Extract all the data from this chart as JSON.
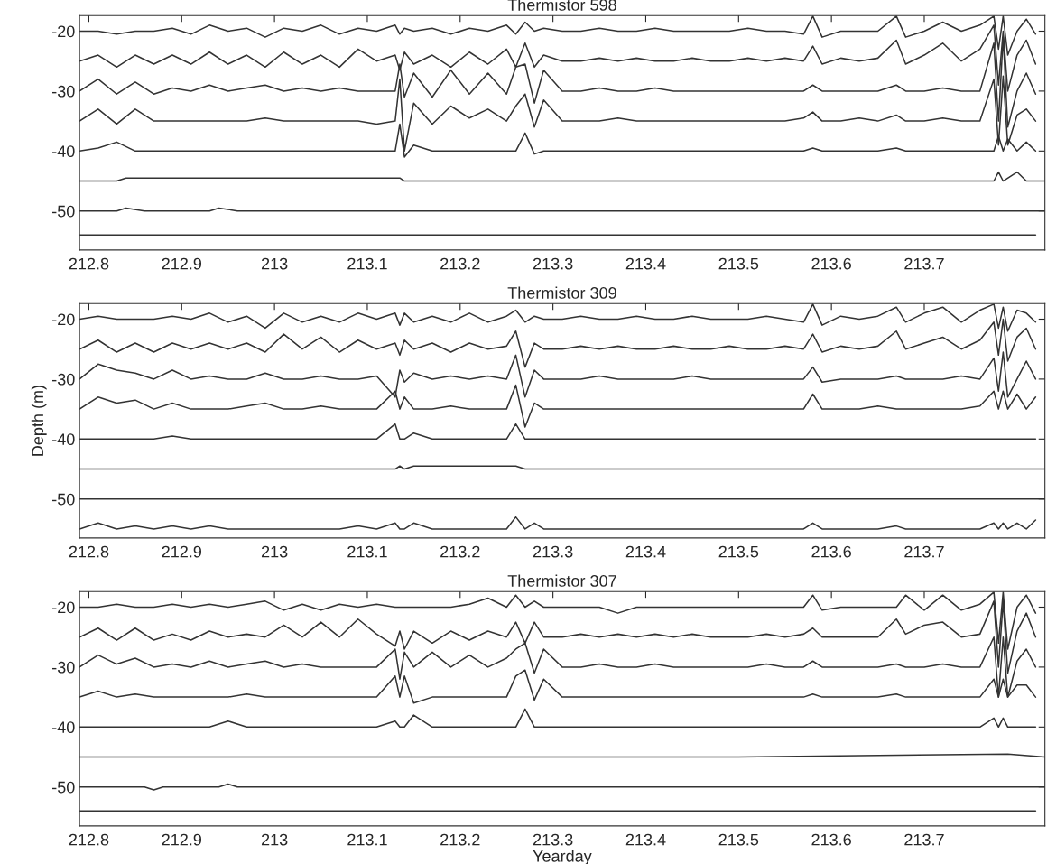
{
  "chart_data": [
    {
      "type": "line",
      "title": "Thermistor 598",
      "xlim": [
        212.79,
        213.83
      ],
      "ylim": [
        -56.5,
        -17.4
      ],
      "xticks": [
        212.8,
        212.9,
        213,
        213.1,
        213.2,
        213.3,
        213.4,
        213.5,
        213.6,
        213.7
      ],
      "yticks": [
        -20,
        -30,
        -40,
        -50
      ],
      "grid": false,
      "x": [
        212.79,
        212.81,
        212.83,
        212.85,
        212.87,
        212.89,
        212.91,
        212.93,
        212.95,
        212.97,
        212.99,
        213.01,
        213.03,
        213.05,
        213.07,
        213.09,
        213.11,
        213.13,
        213.135,
        213.14,
        213.15,
        213.17,
        213.19,
        213.21,
        213.23,
        213.25,
        213.26,
        213.27,
        213.28,
        213.29,
        213.31,
        213.33,
        213.35,
        213.37,
        213.39,
        213.41,
        213.43,
        213.45,
        213.47,
        213.49,
        213.51,
        213.53,
        213.55,
        213.57,
        213.58,
        213.59,
        213.61,
        213.63,
        213.65,
        213.67,
        213.68,
        213.7,
        213.72,
        213.74,
        213.76,
        213.775,
        213.78,
        213.785,
        213.79,
        213.8,
        213.81,
        213.82
      ],
      "series": [
        {
          "color": "#333333",
          "values": [
            -20,
            -20,
            -20.5,
            -20,
            -20,
            -19.5,
            -20.5,
            -19,
            -20,
            -19.5,
            -21,
            -19.5,
            -20,
            -19,
            -20.5,
            -19.5,
            -20,
            -19,
            -20.5,
            -19.5,
            -20,
            -19.5,
            -20.5,
            -19.5,
            -20,
            -19,
            -20.5,
            -18.5,
            -20,
            -19.5,
            -20,
            -20,
            -19.5,
            -20,
            -20,
            -19.5,
            -20,
            -20,
            -20,
            -20,
            -19.5,
            -20,
            -20,
            -20.5,
            -17.5,
            -21,
            -20,
            -20,
            -20,
            -17.5,
            -21,
            -20,
            -18.5,
            -20,
            -19,
            -17.5,
            -23,
            -17.5,
            -24,
            -20,
            -18,
            -20.5
          ]
        },
        {
          "color": "#333333",
          "values": [
            -25,
            -24,
            -26,
            -24,
            -25.5,
            -24,
            -25.5,
            -23.5,
            -25.5,
            -24,
            -26,
            -23.5,
            -25.5,
            -24,
            -26,
            -23,
            -25,
            -24,
            -26.5,
            -23.5,
            -25.5,
            -24,
            -26,
            -23.5,
            -25.5,
            -23,
            -26,
            -22,
            -26,
            -24,
            -25,
            -25,
            -24.5,
            -25,
            -24.5,
            -25,
            -25,
            -24.5,
            -25,
            -25,
            -24.5,
            -25,
            -24.5,
            -25,
            -22.5,
            -25.5,
            -24.5,
            -25,
            -24.5,
            -21.5,
            -25.5,
            -24,
            -22,
            -25,
            -23,
            -19,
            -29,
            -20,
            -30,
            -24,
            -21.5,
            -25.5
          ]
        },
        {
          "color": "#333333",
          "values": [
            -30,
            -28,
            -30.5,
            -28.5,
            -30.5,
            -29.5,
            -30,
            -29,
            -30,
            -29.5,
            -29,
            -30,
            -29.5,
            -30,
            -29.5,
            -30,
            -30,
            -30,
            -25.5,
            -31,
            -27,
            -31,
            -26.5,
            -30.5,
            -27,
            -30.5,
            -26,
            -25.5,
            -32,
            -26.5,
            -30,
            -30,
            -29.5,
            -30,
            -30,
            -29.5,
            -30,
            -30,
            -30,
            -30,
            -30,
            -30,
            -30,
            -30,
            -29,
            -30,
            -30,
            -30,
            -30,
            -29,
            -30,
            -30,
            -29.5,
            -30,
            -30,
            -22,
            -35,
            -21,
            -36,
            -30,
            -27,
            -30.5
          ]
        },
        {
          "color": "#333333",
          "values": [
            -35,
            -33,
            -35.5,
            -33,
            -35,
            -35,
            -35,
            -35,
            -35,
            -35,
            -34.5,
            -35,
            -35,
            -35,
            -35,
            -35,
            -35.5,
            -35,
            -28,
            -40,
            -32,
            -35.5,
            -32.5,
            -34.5,
            -33,
            -35,
            -32.5,
            -30.5,
            -36,
            -31.5,
            -35,
            -35,
            -35,
            -34.5,
            -35,
            -35,
            -35,
            -35,
            -35,
            -35,
            -35,
            -35,
            -35,
            -34.5,
            -33.5,
            -35,
            -35,
            -34.5,
            -35,
            -34,
            -35,
            -35,
            -34.5,
            -35,
            -35,
            -28,
            -39,
            -27.5,
            -39,
            -34,
            -33,
            -35
          ]
        },
        {
          "color": "#333333",
          "values": [
            -40,
            -39.5,
            -38.5,
            -40,
            -40,
            -40,
            -40,
            -40,
            -40,
            -40,
            -40,
            -40,
            -40,
            -40,
            -40,
            -40,
            -40,
            -40,
            -35.5,
            -41,
            -39,
            -40,
            -40,
            -40,
            -40,
            -40,
            -40,
            -37,
            -40.5,
            -40,
            -40,
            -40,
            -40,
            -40,
            -40,
            -40,
            -40,
            -40,
            -40,
            -40,
            -40,
            -40,
            -40,
            -40,
            -39.5,
            -40,
            -40,
            -40,
            -40,
            -39.5,
            -40,
            -40,
            -40,
            -40,
            -40,
            -40,
            -37.5,
            -40,
            -38,
            -40,
            -38.5,
            -40
          ]
        },
        {
          "color": "#333333",
          "x": [
            212.79,
            212.83,
            212.84,
            213.135,
            213.14,
            213.5,
            213.775,
            213.78,
            213.785,
            213.8,
            213.81,
            213.83
          ],
          "values": [
            -45,
            -45,
            -44.5,
            -44.5,
            -45,
            -45,
            -45,
            -43.5,
            -45,
            -43.5,
            -45,
            -45
          ]
        },
        {
          "color": "#333333",
          "x": [
            212.79,
            212.83,
            212.84,
            212.86,
            212.93,
            212.94,
            212.96,
            213.83
          ],
          "values": [
            -50,
            -50,
            -49.5,
            -50,
            -50,
            -49.5,
            -50,
            -50
          ]
        },
        {
          "color": "#333333",
          "x": [
            212.79,
            212.9,
            213.0,
            213.1,
            213.2,
            213.3,
            213.4,
            213.5,
            213.6,
            213.7,
            213.82
          ],
          "values": [
            -54,
            -54,
            -54,
            -54,
            -54,
            -54,
            -54,
            -54,
            -54,
            -54,
            -54
          ]
        }
      ]
    },
    {
      "type": "line",
      "title": "Thermistor 309",
      "ylabel": "Depth (m)",
      "xlim": [
        212.79,
        213.83
      ],
      "ylim": [
        -56.5,
        -17.4
      ],
      "xticks": [
        212.8,
        212.9,
        213,
        213.1,
        213.2,
        213.3,
        213.4,
        213.5,
        213.6,
        213.7
      ],
      "yticks": [
        -20,
        -30,
        -40,
        -50
      ],
      "grid": false,
      "x": [
        212.79,
        212.81,
        212.83,
        212.85,
        212.87,
        212.89,
        212.91,
        212.93,
        212.95,
        212.97,
        212.99,
        213.01,
        213.03,
        213.05,
        213.07,
        213.09,
        213.11,
        213.13,
        213.135,
        213.14,
        213.15,
        213.17,
        213.19,
        213.21,
        213.23,
        213.25,
        213.26,
        213.27,
        213.28,
        213.29,
        213.31,
        213.33,
        213.35,
        213.37,
        213.39,
        213.41,
        213.43,
        213.45,
        213.47,
        213.49,
        213.51,
        213.53,
        213.55,
        213.57,
        213.58,
        213.59,
        213.61,
        213.63,
        213.65,
        213.67,
        213.68,
        213.7,
        213.72,
        213.74,
        213.76,
        213.775,
        213.78,
        213.785,
        213.79,
        213.8,
        213.81,
        213.82
      ],
      "series": [
        {
          "color": "#333333",
          "values": [
            -20,
            -19.5,
            -20,
            -20,
            -20,
            -19.5,
            -20,
            -19,
            -20.5,
            -19.5,
            -21.5,
            -19,
            -20.5,
            -19.5,
            -20.5,
            -19,
            -20,
            -19,
            -21,
            -19,
            -20.5,
            -19.5,
            -20.5,
            -19,
            -20.5,
            -19.5,
            -18.5,
            -20.5,
            -19.5,
            -20,
            -20,
            -19.5,
            -20,
            -20,
            -19.5,
            -20,
            -20,
            -19.5,
            -20,
            -20,
            -20,
            -19.5,
            -20,
            -20.5,
            -17.5,
            -21,
            -19.5,
            -20,
            -19.5,
            -18,
            -20.5,
            -19,
            -18,
            -20.5,
            -18.5,
            -17.5,
            -21.5,
            -18,
            -22,
            -18.5,
            -19,
            -20.5
          ]
        },
        {
          "color": "#333333",
          "values": [
            -25,
            -23.5,
            -25.5,
            -24,
            -25.5,
            -24,
            -25,
            -24,
            -25,
            -24,
            -25.5,
            -22.5,
            -25,
            -23,
            -25.5,
            -23.5,
            -25,
            -24,
            -26,
            -23.5,
            -25,
            -24,
            -25.5,
            -24,
            -25,
            -24.5,
            -22,
            -28,
            -24,
            -25,
            -25,
            -24.5,
            -25,
            -24.5,
            -25,
            -25,
            -24.5,
            -25,
            -25,
            -24.5,
            -25,
            -25,
            -24.5,
            -25,
            -22.5,
            -25.5,
            -24.5,
            -25,
            -24.5,
            -22,
            -25,
            -24,
            -23,
            -25,
            -23.5,
            -20.5,
            -26,
            -20,
            -27,
            -23,
            -21.5,
            -25
          ]
        },
        {
          "color": "#333333",
          "values": [
            -30,
            -27.5,
            -28.5,
            -29,
            -30,
            -28.5,
            -30,
            -29.5,
            -30,
            -30,
            -29,
            -30,
            -30,
            -29.5,
            -30,
            -30,
            -29.5,
            -33,
            -28.5,
            -30.5,
            -29,
            -30,
            -29.5,
            -30,
            -29.5,
            -30,
            -26,
            -33,
            -28.5,
            -30,
            -30,
            -30,
            -29.5,
            -30,
            -30,
            -30,
            -30,
            -29.5,
            -30,
            -30,
            -30,
            -30,
            -30,
            -30,
            -28,
            -30.5,
            -30,
            -30,
            -30,
            -29.5,
            -30,
            -30,
            -30,
            -29.5,
            -30,
            -26.5,
            -32,
            -25.5,
            -33,
            -30,
            -27,
            -30
          ]
        },
        {
          "color": "#333333",
          "values": [
            -35,
            -33,
            -34,
            -33.5,
            -35,
            -34,
            -35,
            -35,
            -35,
            -34.5,
            -34,
            -35,
            -35,
            -34.5,
            -35,
            -35,
            -35,
            -32,
            -35,
            -33,
            -35,
            -35,
            -34.5,
            -35,
            -35,
            -35,
            -31,
            -38,
            -34,
            -35,
            -35,
            -35,
            -35,
            -35,
            -35,
            -35,
            -35,
            -35,
            -35,
            -35,
            -35,
            -35,
            -35,
            -35,
            -32.5,
            -35,
            -35,
            -35,
            -34.5,
            -35,
            -35,
            -35,
            -35,
            -35,
            -34.5,
            -32,
            -35,
            -32,
            -35,
            -32.5,
            -35,
            -33
          ]
        },
        {
          "color": "#333333",
          "values": [
            -40,
            -40,
            -40,
            -40,
            -40,
            -39.5,
            -40,
            -40,
            -40,
            -40,
            -40,
            -40,
            -40,
            -40,
            -40,
            -40,
            -40,
            -37.5,
            -40,
            -40,
            -39,
            -40,
            -40,
            -40,
            -40,
            -40,
            -37.5,
            -40,
            -40,
            -40,
            -40,
            -40,
            -40,
            -40,
            -40,
            -40,
            -40,
            -40,
            -40,
            -40,
            -40,
            -40,
            -40,
            -40,
            -40,
            -40,
            -40,
            -40,
            -40,
            -40,
            -40,
            -40,
            -40,
            -40,
            -40,
            -40,
            -40,
            -40,
            -40,
            -40,
            -40,
            -40
          ]
        },
        {
          "color": "#333333",
          "x": [
            212.79,
            213.13,
            213.135,
            213.14,
            213.15,
            213.26,
            213.27,
            213.83
          ],
          "values": [
            -45,
            -45,
            -44.5,
            -45,
            -44.5,
            -44.5,
            -45,
            -45
          ]
        },
        {
          "color": "#333333",
          "x": [
            212.79,
            213.3,
            213.83
          ],
          "values": [
            -50,
            -50,
            -50
          ]
        },
        {
          "color": "#333333",
          "values": [
            -55,
            -54,
            -55,
            -54.5,
            -55,
            -54.5,
            -55,
            -54.5,
            -55,
            -55,
            -55,
            -55,
            -55,
            -55,
            -55,
            -54.5,
            -55,
            -54,
            -55,
            -55,
            -54,
            -55,
            -55,
            -55,
            -55,
            -55,
            -53,
            -55,
            -54,
            -55,
            -55,
            -55,
            -55,
            -55,
            -55,
            -55,
            -55,
            -55,
            -55,
            -55,
            -55,
            -55,
            -55,
            -55,
            -54,
            -55,
            -55,
            -55,
            -55,
            -54.5,
            -55,
            -55,
            -55,
            -55,
            -55,
            -54,
            -55,
            -54,
            -55,
            -54,
            -55,
            -53.5
          ]
        }
      ]
    },
    {
      "type": "line",
      "title": "Thermistor 307",
      "xlabel": "Yearday",
      "xlim": [
        212.79,
        213.83
      ],
      "ylim": [
        -56.5,
        -17.4
      ],
      "xticks": [
        212.8,
        212.9,
        213,
        213.1,
        213.2,
        213.3,
        213.4,
        213.5,
        213.6,
        213.7
      ],
      "yticks": [
        -20,
        -30,
        -40,
        -50
      ],
      "grid": false,
      "x": [
        212.79,
        212.81,
        212.83,
        212.85,
        212.87,
        212.89,
        212.91,
        212.93,
        212.95,
        212.97,
        212.99,
        213.01,
        213.03,
        213.05,
        213.07,
        213.09,
        213.11,
        213.13,
        213.135,
        213.14,
        213.15,
        213.17,
        213.19,
        213.21,
        213.23,
        213.25,
        213.26,
        213.27,
        213.28,
        213.29,
        213.31,
        213.33,
        213.35,
        213.37,
        213.39,
        213.41,
        213.43,
        213.45,
        213.47,
        213.49,
        213.51,
        213.53,
        213.55,
        213.57,
        213.58,
        213.59,
        213.61,
        213.63,
        213.65,
        213.67,
        213.68,
        213.7,
        213.72,
        213.74,
        213.76,
        213.775,
        213.78,
        213.785,
        213.79,
        213.8,
        213.81,
        213.82
      ],
      "series": [
        {
          "color": "#333333",
          "values": [
            -20,
            -20,
            -19.5,
            -20,
            -20,
            -19.5,
            -20,
            -19.5,
            -20,
            -19.5,
            -19,
            -20.5,
            -19.5,
            -20.5,
            -19.5,
            -20,
            -19.5,
            -20,
            -20,
            -20,
            -20,
            -20,
            -20,
            -19.5,
            -18.5,
            -20,
            -18,
            -20,
            -19,
            -20,
            -20,
            -20,
            -20,
            -21,
            -20,
            -20,
            -20,
            -20,
            -20,
            -20,
            -20,
            -20,
            -20,
            -20,
            -18,
            -20.5,
            -20,
            -20,
            -20,
            -20,
            -18,
            -20.5,
            -18,
            -20.5,
            -19.5,
            -17.5,
            -26,
            -17.5,
            -27,
            -20,
            -18,
            -21
          ]
        },
        {
          "color": "#333333",
          "values": [
            -25,
            -23.5,
            -25.5,
            -23.5,
            -25.5,
            -24.5,
            -25.5,
            -24,
            -25,
            -24.5,
            -25,
            -23,
            -25,
            -22.5,
            -25,
            -22,
            -24.5,
            -26.5,
            -24,
            -27,
            -24,
            -26,
            -24,
            -25.5,
            -24,
            -25,
            -22.5,
            -26,
            -22.5,
            -25,
            -25,
            -24.5,
            -25,
            -24.5,
            -25,
            -24.5,
            -25,
            -24.5,
            -25,
            -25,
            -25,
            -24.5,
            -25,
            -24.5,
            -23.5,
            -25,
            -25,
            -25,
            -25,
            -22,
            -24.5,
            -23,
            -22.5,
            -25,
            -24.5,
            -19,
            -30,
            -19,
            -31,
            -24,
            -21,
            -25
          ]
        },
        {
          "color": "#333333",
          "values": [
            -30,
            -28,
            -29.5,
            -28.5,
            -30,
            -29.5,
            -30,
            -29,
            -30,
            -29.5,
            -29,
            -30,
            -29.5,
            -30,
            -30,
            -30,
            -30,
            -27,
            -32,
            -27.5,
            -30,
            -27.5,
            -30,
            -28,
            -30,
            -28.5,
            -27,
            -26,
            -31,
            -27,
            -30,
            -30,
            -29.5,
            -30,
            -30,
            -29.5,
            -30,
            -30,
            -30,
            -30,
            -30,
            -29.5,
            -30,
            -30,
            -29,
            -30,
            -30,
            -30,
            -30,
            -29.5,
            -30,
            -30,
            -29.5,
            -30,
            -30,
            -25,
            -35,
            -25,
            -35,
            -29,
            -27,
            -30
          ]
        },
        {
          "color": "#333333",
          "values": [
            -35,
            -34,
            -35,
            -34.5,
            -35,
            -35,
            -35,
            -35,
            -35,
            -34.5,
            -35,
            -35,
            -35,
            -35,
            -35,
            -35,
            -35,
            -31.5,
            -35,
            -31.5,
            -36,
            -35,
            -35,
            -35,
            -35,
            -35,
            -31.5,
            -30.5,
            -35.5,
            -32,
            -35,
            -35,
            -35,
            -35,
            -35,
            -35,
            -35,
            -35,
            -35,
            -35,
            -35,
            -35,
            -35,
            -35,
            -34.5,
            -35,
            -35,
            -35,
            -35,
            -34.5,
            -35,
            -35,
            -35,
            -35,
            -35,
            -32,
            -35,
            -32,
            -35,
            -33,
            -33,
            -35
          ]
        },
        {
          "color": "#333333",
          "values": [
            -40,
            -40,
            -40,
            -40,
            -40,
            -40,
            -40,
            -40,
            -39,
            -40,
            -40,
            -40,
            -40,
            -40,
            -40,
            -40,
            -40,
            -39,
            -40,
            -40,
            -38,
            -40,
            -40,
            -40,
            -40,
            -40,
            -40,
            -37,
            -40,
            -40,
            -40,
            -40,
            -40,
            -40,
            -40,
            -40,
            -40,
            -40,
            -40,
            -40,
            -40,
            -40,
            -40,
            -40,
            -40,
            -40,
            -40,
            -40,
            -40,
            -40,
            -40,
            -40,
            -40,
            -40,
            -40,
            -38.5,
            -40,
            -38.5,
            -40,
            -40,
            -40,
            -40
          ]
        },
        {
          "color": "#333333",
          "x": [
            212.79,
            213.5,
            213.79,
            213.83
          ],
          "values": [
            -45,
            -45,
            -44.5,
            -45
          ]
        },
        {
          "color": "#333333",
          "x": [
            212.79,
            212.86,
            212.87,
            212.88,
            212.94,
            212.95,
            212.96,
            213.83
          ],
          "values": [
            -50,
            -50,
            -50.5,
            -50,
            -50,
            -49.5,
            -50,
            -50
          ]
        },
        {
          "color": "#333333",
          "x": [
            212.79,
            212.9,
            213.0,
            213.1,
            213.2,
            213.3,
            213.4,
            213.5,
            213.6,
            213.7,
            213.82
          ],
          "values": [
            -54,
            -54,
            -54,
            -54,
            -54,
            -54,
            -54,
            -54,
            -54,
            -54,
            -54
          ]
        }
      ]
    }
  ]
}
